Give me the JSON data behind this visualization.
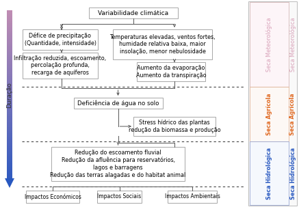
{
  "title": "Variabilidade climática",
  "box_deficit": "Défice de precipitação\n(Quantidade, intensidade)",
  "box_temp": "Temperaturas elevadas, ventos fortes,\nhumidade relativa baixa, maior\ninsolação, menor nebulosidade",
  "box_infiltration": "Infiltração reduzida, escoamento,\npercolação profunda,\nrecarga de aquíferos",
  "box_evap": "Aumento da evaporação\nAumento da transpiração",
  "box_deficiencia": "Deficiência de água no solo",
  "box_stress": "Stress hídrico das plantas\nredução da biomassa e produção",
  "box_reducao": "Redução do escoamento fluvial\nRedução da afluência para reservatórios,\nlagos e barragens\nRedução das terras alagadas e do habitat animal",
  "box_economicos": "Impactos Económicos",
  "box_sociais": "Impactos Sociais",
  "box_ambientais": "Impactos Ambientais",
  "label_duracao": "Duração",
  "label_meteo": "Seca Meteorológica",
  "label_agricola": "Seca Agrícola",
  "label_hidro": "Seca Hidrológica",
  "color_meteo": "#d8a0b8",
  "color_agricola": "#e06820",
  "color_hidro": "#2858c0",
  "background": "#ffffff",
  "box_bg": "#ffffff",
  "box_edge": "#999999",
  "dashed_color": "#444444",
  "line_color": "#555555"
}
